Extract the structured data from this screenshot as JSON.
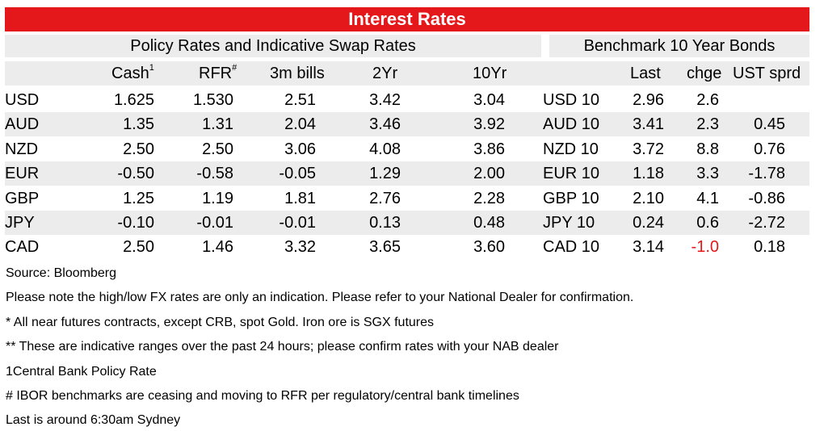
{
  "title": "Interest Rates",
  "left_section_title": "Policy Rates and Indicative Swap Rates",
  "right_section_title": "Benchmark 10 Year Bonds",
  "headers": {
    "cash": "Cash",
    "cash_sup": "1",
    "rfr": "RFR",
    "rfr_sup": "#",
    "bills3m": "3m bills",
    "yr2": "2Yr",
    "yr10": "10Yr",
    "last": "Last",
    "chge": "chge",
    "ust": "UST sprd"
  },
  "rows": [
    {
      "ccy": "USD",
      "cash": "1.625",
      "rfr": "1.530",
      "bills": "2.51",
      "y2": "3.42",
      "y10": "3.04",
      "bond": "USD 10",
      "last": "2.96",
      "chge": "2.6",
      "ust": ""
    },
    {
      "ccy": "AUD",
      "cash": "1.35",
      "rfr": "1.31",
      "bills": "2.04",
      "y2": "3.46",
      "y10": "3.92",
      "bond": "AUD 10",
      "last": "3.41",
      "chge": "2.3",
      "ust": "0.45"
    },
    {
      "ccy": "NZD",
      "cash": "2.50",
      "rfr": "2.50",
      "bills": "3.06",
      "y2": "4.08",
      "y10": "3.86",
      "bond": "NZD 10",
      "last": "3.72",
      "chge": "8.8",
      "ust": "0.76"
    },
    {
      "ccy": "EUR",
      "cash": "-0.50",
      "rfr": "-0.58",
      "bills": "-0.05",
      "y2": "1.29",
      "y10": "2.00",
      "bond": "EUR 10",
      "last": "1.18",
      "chge": "3.3",
      "ust": "-1.78"
    },
    {
      "ccy": "GBP",
      "cash": "1.25",
      "rfr": "1.19",
      "bills": "1.81",
      "y2": "2.76",
      "y10": "2.28",
      "bond": "GBP 10",
      "last": "2.10",
      "chge": "4.1",
      "ust": "-0.86"
    },
    {
      "ccy": "JPY",
      "cash": "-0.10",
      "rfr": "-0.01",
      "bills": "-0.01",
      "y2": "0.13",
      "y10": "0.48",
      "bond": "JPY 10",
      "last": "0.24",
      "chge": "0.6",
      "ust": "-2.72"
    },
    {
      "ccy": "CAD",
      "cash": "2.50",
      "rfr": "1.46",
      "bills": "3.32",
      "y2": "3.65",
      "y10": "3.60",
      "bond": "CAD 10",
      "last": "3.14",
      "chge": "-1.0",
      "ust": "0.18"
    }
  ],
  "negative_color": "#e4171b",
  "notes": [
    "Source: Bloomberg",
    "Please note the high/low FX rates are only an indication. Please refer to your National Dealer for confirmation.",
    "* All near futures contracts, except CRB, spot Gold.  Iron ore is SGX futures",
    "** These are indicative ranges over the past 24 hours; please confirm rates with your NAB dealer",
    "1Central Bank Policy Rate",
    "# IBOR benchmarks are ceasing and moving to RFR per regulatory/central bank timelines",
    "Last is around 6:30am Sydney"
  ]
}
